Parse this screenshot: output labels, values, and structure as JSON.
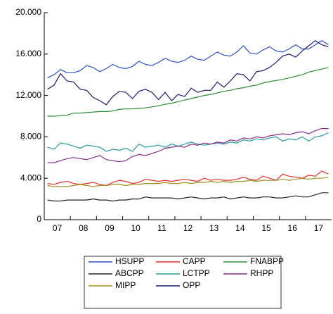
{
  "chart_data": {
    "type": "line",
    "categories": [
      null,
      "07",
      null,
      null,
      null,
      "08",
      null,
      null,
      null,
      "09",
      null,
      null,
      null,
      "10",
      null,
      null,
      null,
      "11",
      null,
      null,
      null,
      "12",
      null,
      null,
      null,
      "13",
      null,
      null,
      null,
      "14",
      null,
      null,
      null,
      "15",
      null,
      null,
      null,
      "16",
      null,
      null,
      null,
      "17",
      null,
      null
    ],
    "ylim": [
      0,
      20000
    ],
    "yticks": [
      0,
      {
        "value": 4000,
        "label": "4.000"
      },
      {
        "value": 8000,
        "label": "8.000"
      },
      {
        "value": 12000,
        "label": "12.000"
      },
      {
        "value": 16000,
        "label": "16.000"
      },
      {
        "value": 20000,
        "label": "20.000"
      }
    ],
    "series": [
      {
        "name": "HSUPP",
        "color": "#3050c8",
        "values": [
          13700,
          14000,
          14500,
          14200,
          14200,
          14400,
          14900,
          14700,
          14300,
          14600,
          15000,
          14700,
          14600,
          14800,
          15300,
          15000,
          14900,
          15200,
          15600,
          15300,
          15200,
          15400,
          15800,
          15500,
          15400,
          15800,
          16200,
          15900,
          15800,
          16200,
          16800,
          16100,
          16000,
          16400,
          16700,
          16300,
          16200,
          16500,
          16900,
          16500,
          16500,
          16900,
          17300,
          16900
        ]
      },
      {
        "name": "CAPP",
        "color": "#e03030",
        "values": [
          3500,
          3400,
          3600,
          3700,
          3500,
          3400,
          3500,
          3600,
          3400,
          3300,
          3600,
          3800,
          3700,
          3500,
          3600,
          3900,
          3800,
          3700,
          3800,
          3700,
          3800,
          3900,
          3800,
          3700,
          4000,
          3800,
          3900,
          3800,
          3800,
          3900,
          4100,
          3900,
          3800,
          4200,
          4000,
          3800,
          4400,
          4200,
          4100,
          4000,
          4300,
          4200,
          4700,
          4400
        ]
      },
      {
        "name": "FNABPP",
        "color": "#2e8b3a",
        "values": [
          10000,
          10000,
          10050,
          10100,
          10300,
          10300,
          10350,
          10400,
          10450,
          10450,
          10500,
          10650,
          10700,
          10700,
          10750,
          10800,
          10900,
          11000,
          11150,
          11250,
          11400,
          11550,
          11700,
          11850,
          12000,
          12100,
          12250,
          12400,
          12500,
          12650,
          12750,
          12900,
          13000,
          13200,
          13350,
          13450,
          13550,
          13700,
          13850,
          14000,
          14250,
          14400,
          14550,
          14700
        ]
      },
      {
        "name": "ABCPP",
        "color": "#222222",
        "values": [
          1900,
          1800,
          1800,
          1900,
          1900,
          1900,
          1900,
          2000,
          1900,
          1900,
          1800,
          1900,
          1900,
          2000,
          2000,
          2200,
          2100,
          2100,
          2100,
          2100,
          2000,
          2100,
          2200,
          2100,
          2000,
          2100,
          2100,
          2200,
          2000,
          2100,
          2200,
          2100,
          2100,
          2200,
          2200,
          2100,
          2100,
          2200,
          2300,
          2200,
          2200,
          2400,
          2600,
          2600
        ]
      },
      {
        "name": "LCTPP",
        "color": "#2a9a9a",
        "values": [
          7000,
          6800,
          7400,
          7300,
          7100,
          6900,
          7200,
          7100,
          7000,
          6600,
          6800,
          6700,
          6900,
          6600,
          7300,
          7000,
          7100,
          7200,
          7000,
          7300,
          7100,
          7300,
          7500,
          7300,
          7200,
          7300,
          7400,
          7300,
          7500,
          7400,
          7700,
          7600,
          7800,
          7700,
          7900,
          8000,
          7600,
          7800,
          7700,
          8000,
          7600,
          8000,
          8100,
          8400
        ]
      },
      {
        "name": "RHPP",
        "color": "#8a2a8a",
        "values": [
          5500,
          5500,
          5700,
          5900,
          6000,
          5900,
          5800,
          6000,
          6200,
          5800,
          5700,
          5600,
          5700,
          6100,
          6300,
          6200,
          6400,
          6600,
          6900,
          7000,
          7100,
          7000,
          7300,
          7200,
          7400,
          7300,
          7500,
          7400,
          7700,
          7600,
          7900,
          7800,
          8000,
          7900,
          8100,
          8200,
          8300,
          8200,
          8400,
          8500,
          8300,
          8600,
          8800,
          8800
        ]
      },
      {
        "name": "MIPP",
        "color": "#a09020",
        "values": [
          3300,
          3200,
          3200,
          3200,
          3300,
          3400,
          3300,
          3200,
          3300,
          3300,
          3400,
          3400,
          3300,
          3400,
          3400,
          3500,
          3500,
          3500,
          3600,
          3500,
          3500,
          3600,
          3500,
          3600,
          3600,
          3700,
          3600,
          3700,
          3600,
          3700,
          3700,
          3800,
          3700,
          3800,
          3800,
          3800,
          3900,
          3800,
          3900,
          4000,
          3900,
          4000,
          4000,
          4100
        ]
      },
      {
        "name": "OPP",
        "color": "#1c1c6e",
        "values": [
          12600,
          13000,
          14100,
          13400,
          13300,
          12600,
          12500,
          11800,
          11500,
          11100,
          11900,
          12400,
          12300,
          11700,
          12400,
          12600,
          12300,
          11600,
          12300,
          11500,
          12100,
          11900,
          12700,
          12300,
          12500,
          12500,
          13300,
          12800,
          13400,
          14100,
          14000,
          13400,
          14300,
          14400,
          14700,
          15200,
          15800,
          16000,
          15700,
          16300,
          16800,
          17300,
          16900,
          16700
        ]
      }
    ]
  }
}
